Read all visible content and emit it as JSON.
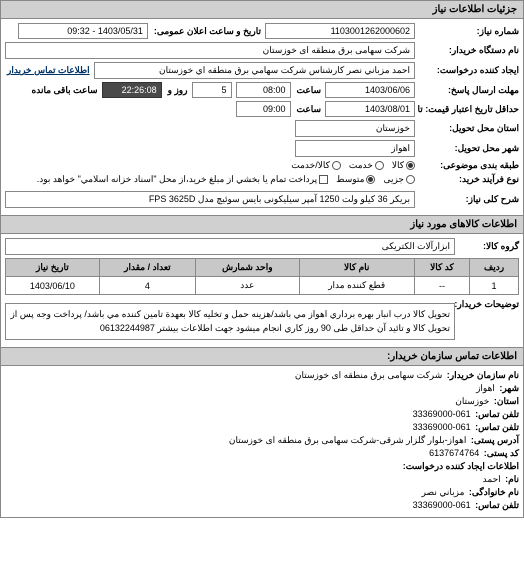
{
  "header": {
    "title": "جزئیات اطلاعات نیاز"
  },
  "form": {
    "req_no_label": "شماره نیاز:",
    "req_no": "1103001262000602",
    "pub_date_label": "تاریخ و ساعت اعلان عمومی:",
    "pub_date": "1403/05/31 - 09:32",
    "org_name_label": "نام دستگاه خریدار:",
    "org_name": "شرکت سهامی برق منطقه ای خوزستان",
    "creator_label": "ایجاد کننده درخواست:",
    "creator": "احمد مزباني نصر کارشناس شرکت سهامي برق منطقه اي خوزستان",
    "contact_label": "اطلاعات تماس خریدار",
    "deadline_send_label": "مهلت ارسال پاسخ:",
    "deadline_send": "1403/06/06",
    "time_label": "ساعت",
    "deadline_send_time": "08:00",
    "remaining_label_prefix": "",
    "remaining_days": "5",
    "remaining_days_label": "روز و",
    "remaining_time": "22:26:08",
    "remaining_suffix": "ساعت باقی مانده",
    "validity_label": "حداقل تاریخ اعتبار قیمت: تا تاریخ:",
    "validity_date": "1403/08/01",
    "validity_time": "09:00",
    "province_label": "استان محل تحویل:",
    "province": "خوزستان",
    "city_label": "شهر محل تحویل:",
    "city": "اهواز",
    "subject_type_label": "طبقه بندی موضوعی:",
    "type_goods": "کالا",
    "type_service": "خدمت",
    "type_goods_service": "کالا/خدمت",
    "buy_process_label": "نوع فرآیند خرید:",
    "proc_small": "جزیی",
    "proc_medium": "متوسط",
    "proc_note": "پرداخت تمام يا بخشي از مبلغ خريد،از محل \"اسناد خزانه اسلامي\" خواهد بود.",
    "need_title_label": "شرح کلی نیاز:",
    "need_title": "بریکر 36 کیلو ولت 1250 آمپر سیلیکونی بایس سوئیچ مدل FPS 3625D"
  },
  "items_header": "اطلاعات کالاهای مورد نیاز",
  "group_label": "گروه کالا:",
  "group_value": "ابزارآلات الکتریکی",
  "table": {
    "cols": [
      "ردیف",
      "کد کالا",
      "نام کالا",
      "واحد شمارش",
      "تعداد / مقدار",
      "تاریخ نیاز"
    ],
    "rows": [
      [
        "1",
        "--",
        "قطع كننده مدار",
        "عدد",
        "4",
        "1403/06/10"
      ]
    ]
  },
  "buyer_notes_label": "توضیحات خریدار:",
  "buyer_notes": "تحويل كالا درب انبار بهره برداري اهواز مي باشد/هزينه حمل و تخليه كالا بعهدة تامين كننده مي باشد/ پرداخت وجه پس از تحويل كالا و تائيد آن حداقل طی 90 روز كاري انجام ميشود جهت اطلاعات بيشتر 06132244987",
  "contact_header": "اطلاعات تماس سازمان خریدار:",
  "contact": {
    "org_label": "نام سازمان خریدار:",
    "org": "شرکت سهامی برق منطقه ای خوزستان",
    "city_label": "شهر:",
    "city": "اهواز",
    "province_label": "استان:",
    "province": "خوزستان",
    "phone_label": "تلفن تماس:",
    "phone": "061-33369000",
    "fax_label": "تلفن تماس:",
    "fax": "061-33369000",
    "postal_addr_label": "آدرس پستی:",
    "postal_addr": "اهواز-بلوار گلزار شرقی-شرکت سهامی برق منطقه ای خوزستان",
    "postal_code_label": "کد پستی:",
    "postal_code": "6137674764",
    "creator_section_label": "اطلاعات ایجاد کننده درخواست:",
    "name_label": "نام:",
    "name": "احمد",
    "family_label": "نام خانوادگی:",
    "family": "مزباني نصر",
    "phone2_label": "تلفن تماس:",
    "phone2": "061-33369000"
  }
}
